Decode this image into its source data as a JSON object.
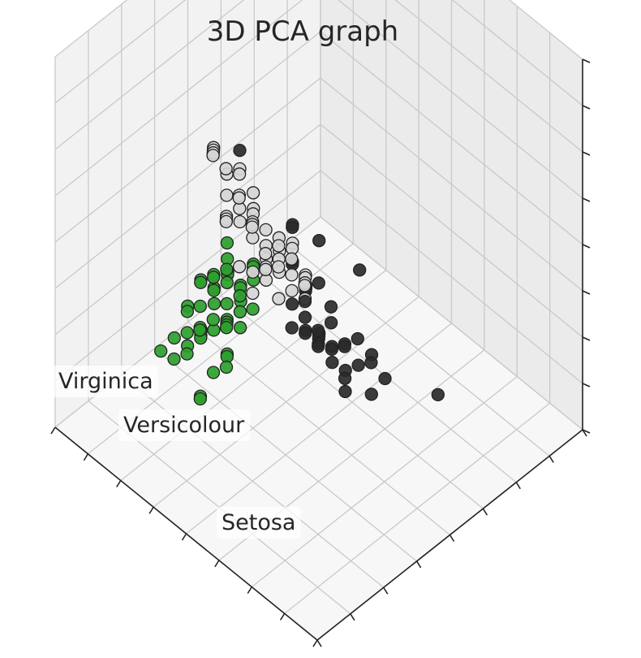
{
  "chart_data": {
    "type": "scatter",
    "projection": "3d",
    "title": "3D PCA graph",
    "grid": true,
    "colors": {
      "virginica": "#2a2a2a",
      "versicolour": "#d6d6d6",
      "setosa": "#2ca02c",
      "edge": "#222222"
    },
    "class_labels": [
      {
        "name": "virginica-label",
        "text": "Virginica"
      },
      {
        "name": "versicolour-label",
        "text": "Versicolour"
      },
      {
        "name": "setosa-label",
        "text": "Setosa"
      }
    ],
    "series": [
      {
        "class": "virginica",
        "points": [
          [
            0.3,
            0.25,
            0.6
          ],
          [
            0.5,
            0.4,
            0.6
          ],
          [
            0.8,
            0.95,
            0.0
          ],
          [
            0.55,
            0.55,
            0.45
          ],
          [
            0.55,
            0.45,
            0.55
          ],
          [
            0.4,
            0.6,
            0.2
          ],
          [
            0.65,
            0.35,
            0.75
          ],
          [
            0.4,
            0.85,
            -0.05
          ],
          [
            0.45,
            0.55,
            0.1
          ],
          [
            0.5,
            0.55,
            0.15
          ],
          [
            0.45,
            0.7,
            0.05
          ],
          [
            0.35,
            0.55,
            0.15
          ],
          [
            0.4,
            0.55,
            0.2
          ],
          [
            0.45,
            0.5,
            0.25
          ],
          [
            0.5,
            0.6,
            0.1
          ],
          [
            0.45,
            0.45,
            0.3
          ],
          [
            0.5,
            0.5,
            0.25
          ],
          [
            0.55,
            0.55,
            0.2
          ],
          [
            0.35,
            0.45,
            0.25
          ],
          [
            0.4,
            0.45,
            0.3
          ],
          [
            0.45,
            0.4,
            0.35
          ],
          [
            0.4,
            0.35,
            0.4
          ],
          [
            0.35,
            0.35,
            0.4
          ],
          [
            0.25,
            0.45,
            0.35
          ],
          [
            0.3,
            0.4,
            0.4
          ],
          [
            0.3,
            0.3,
            0.45
          ],
          [
            0.35,
            0.25,
            0.5
          ],
          [
            0.25,
            0.35,
            0.45
          ],
          [
            0.55,
            0.5,
            0.35
          ],
          [
            0.5,
            0.45,
            0.4
          ],
          [
            0.55,
            0.45,
            0.45
          ],
          [
            0.5,
            0.4,
            0.5
          ],
          [
            0.45,
            0.35,
            0.45
          ],
          [
            0.6,
            0.55,
            0.3
          ],
          [
            0.2,
            0.35,
            0.5
          ],
          [
            0.25,
            0.25,
            0.55
          ],
          [
            0.2,
            0.25,
            0.6
          ],
          [
            0.45,
            0.45,
            0.45
          ],
          [
            0.35,
            0.3,
            0.5
          ],
          [
            0.15,
            0.2,
            0.7
          ]
        ]
      },
      {
        "class": "versicolour",
        "points": [
          [
            0.55,
            0.3,
            0.45
          ],
          [
            0.6,
            0.35,
            0.45
          ],
          [
            0.55,
            0.25,
            0.55
          ],
          [
            0.6,
            0.25,
            0.65
          ],
          [
            0.65,
            0.3,
            0.6
          ],
          [
            0.6,
            0.4,
            0.4
          ],
          [
            0.7,
            0.4,
            0.5
          ],
          [
            0.65,
            0.45,
            0.4
          ],
          [
            0.7,
            0.35,
            0.6
          ],
          [
            0.75,
            0.4,
            0.6
          ],
          [
            0.75,
            0.5,
            0.45
          ],
          [
            0.55,
            0.35,
            0.55
          ],
          [
            0.55,
            0.4,
            0.45
          ],
          [
            0.5,
            0.3,
            0.55
          ],
          [
            0.45,
            0.3,
            0.6
          ],
          [
            0.4,
            0.25,
            0.55
          ],
          [
            0.45,
            0.25,
            0.6
          ],
          [
            0.4,
            0.2,
            0.7
          ],
          [
            0.45,
            0.2,
            0.75
          ],
          [
            0.5,
            0.25,
            0.7
          ],
          [
            0.55,
            0.2,
            0.7
          ],
          [
            0.6,
            0.3,
            0.65
          ],
          [
            0.65,
            0.35,
            0.7
          ],
          [
            0.5,
            0.35,
            0.6
          ],
          [
            0.45,
            0.35,
            0.6
          ],
          [
            0.55,
            0.3,
            0.6
          ],
          [
            0.5,
            0.3,
            0.65
          ],
          [
            0.35,
            0.25,
            0.6
          ],
          [
            0.35,
            0.3,
            0.55
          ],
          [
            0.3,
            0.2,
            0.7
          ],
          [
            0.25,
            0.2,
            0.7
          ],
          [
            0.3,
            0.15,
            0.75
          ],
          [
            0.25,
            0.15,
            0.8
          ],
          [
            0.4,
            0.15,
            0.8
          ],
          [
            0.45,
            0.15,
            0.85
          ],
          [
            0.5,
            0.15,
            0.9
          ],
          [
            0.55,
            0.25,
            0.8
          ],
          [
            0.5,
            0.2,
            0.8
          ],
          [
            0.65,
            0.25,
            0.8
          ],
          [
            0.7,
            0.3,
            0.75
          ],
          [
            0.75,
            0.35,
            0.7
          ],
          [
            0.65,
            0.4,
            0.55
          ],
          [
            0.6,
            0.45,
            0.45
          ],
          [
            0.55,
            0.45,
            0.5
          ],
          [
            0.7,
            0.45,
            0.55
          ],
          [
            0.6,
            0.2,
            0.85
          ],
          [
            0.4,
            0.35,
            0.55
          ],
          [
            0.45,
            0.4,
            0.5
          ],
          [
            0.35,
            0.2,
            0.75
          ],
          [
            0.3,
            0.25,
            0.65
          ]
        ]
      },
      {
        "class": "setosa",
        "points": [
          [
            0.8,
            0.45,
            0.25
          ],
          [
            0.85,
            0.45,
            0.2
          ],
          [
            0.85,
            0.5,
            0.3
          ],
          [
            0.9,
            0.5,
            0.15
          ],
          [
            0.9,
            0.45,
            0.2
          ],
          [
            0.75,
            0.45,
            0.2
          ],
          [
            0.8,
            0.5,
            0.1
          ],
          [
            0.8,
            0.4,
            0.3
          ],
          [
            0.85,
            0.4,
            0.25
          ],
          [
            0.8,
            0.45,
            0.15
          ],
          [
            0.75,
            0.4,
            0.25
          ],
          [
            0.7,
            0.4,
            0.3
          ],
          [
            0.75,
            0.35,
            0.35
          ],
          [
            0.7,
            0.35,
            0.4
          ],
          [
            0.75,
            0.4,
            0.2
          ],
          [
            0.9,
            0.55,
            0.2
          ],
          [
            0.9,
            0.6,
            0.1
          ],
          [
            0.95,
            0.6,
            0.1
          ],
          [
            1.0,
            0.65,
            0.05
          ],
          [
            0.95,
            0.65,
            0.0
          ],
          [
            0.85,
            0.55,
            0.15
          ],
          [
            0.8,
            0.55,
            0.2
          ],
          [
            0.85,
            0.5,
            0.0
          ],
          [
            0.9,
            0.45,
            0.05
          ],
          [
            0.8,
            0.45,
            0.05
          ],
          [
            0.85,
            0.35,
            0.2
          ],
          [
            0.7,
            0.25,
            0.3
          ],
          [
            0.75,
            0.3,
            0.3
          ],
          [
            0.65,
            0.3,
            0.3
          ],
          [
            0.65,
            0.25,
            0.35
          ],
          [
            0.8,
            0.35,
            0.0
          ],
          [
            0.85,
            0.3,
            0.1
          ],
          [
            0.75,
            0.3,
            0.05
          ],
          [
            0.7,
            0.35,
            0.25
          ],
          [
            0.6,
            0.25,
            0.25
          ],
          [
            0.65,
            0.2,
            0.35
          ],
          [
            0.8,
            0.4,
            0.15
          ],
          [
            0.85,
            0.4,
            0.1
          ],
          [
            0.9,
            0.4,
            0.05
          ],
          [
            0.75,
            0.5,
            0.3
          ],
          [
            0.7,
            0.45,
            0.35
          ],
          [
            0.95,
            0.55,
            0.05
          ],
          [
            0.85,
            0.25,
            0.15
          ],
          [
            0.8,
            0.3,
            0.2
          ],
          [
            0.75,
            0.25,
            0.2
          ],
          [
            0.7,
            0.3,
            0.15
          ],
          [
            0.6,
            0.35,
            0.35
          ],
          [
            0.9,
            0.35,
            0.1
          ],
          [
            0.95,
            0.45,
            0.1
          ],
          [
            1.0,
            0.55,
            -0.05
          ]
        ]
      }
    ]
  }
}
